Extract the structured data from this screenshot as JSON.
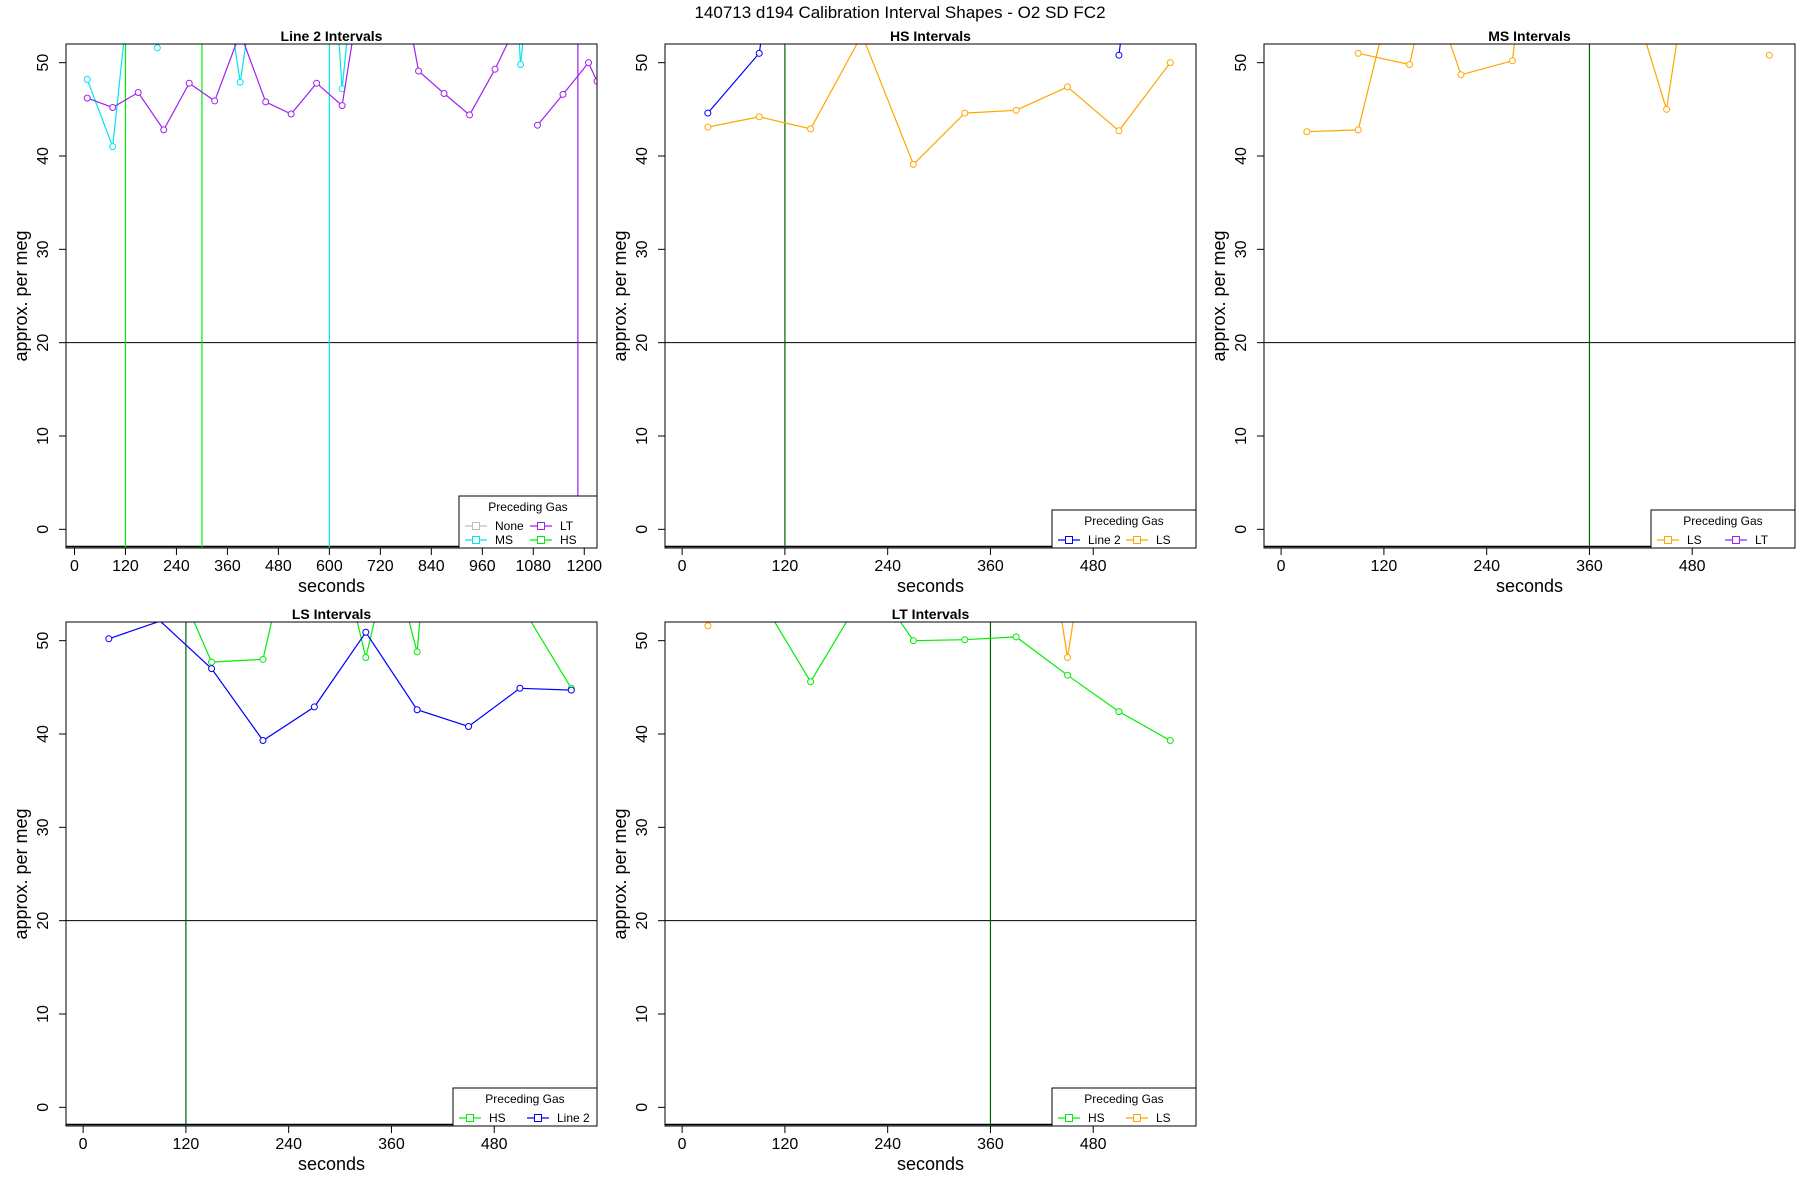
{
  "figure": {
    "title": "140713   d194   Calibration Interval Shapes - O2 SD FC2",
    "legend_title": "Preceding Gas"
  },
  "colors": {
    "None": "#bebebe",
    "MS": "#00e5ee",
    "LT": "#a020f0",
    "HS": "#00ee00",
    "LS": "#ffa500",
    "Line 2": "#0000ff",
    "reference_line": "#006400",
    "baseline": "#000000"
  },
  "chart_data": [
    {
      "type": "line",
      "title": "Line 2 Intervals",
      "xlabel": "seconds",
      "ylabel": "approx. per meg",
      "xlim": [
        -20,
        1230
      ],
      "ylim": [
        -2,
        52
      ],
      "xticks": [
        0,
        120,
        240,
        360,
        480,
        600,
        720,
        840,
        960,
        1080,
        1200
      ],
      "yticks": [
        0,
        10,
        20,
        30,
        40,
        50
      ],
      "hline": 20,
      "grid": false,
      "legend_position": "bottom-right",
      "legend_columns": 2,
      "legend": [
        "None",
        "LT",
        "MS",
        "HS"
      ],
      "vlines": [
        {
          "x": 120,
          "color": "HS"
        },
        {
          "x": 300,
          "color": "HS"
        },
        {
          "x": 600,
          "color": "MS"
        },
        {
          "x": 1185,
          "color": "LT"
        }
      ],
      "series": [
        {
          "name": "MS",
          "x": [
            30,
            90,
            120
          ],
          "y": [
            48.2,
            41.0,
            54
          ]
        },
        {
          "name": "MS",
          "x": [
            195,
            210
          ],
          "y": [
            51.6,
            54
          ]
        },
        {
          "name": "MS",
          "x": [
            370,
            390,
            410
          ],
          "y": [
            54,
            47.9,
            54
          ]
        },
        {
          "name": "MS",
          "x": [
            620,
            630,
            645
          ],
          "y": [
            54,
            47.2,
            54
          ]
        },
        {
          "name": "MS",
          "x": [
            1045,
            1050,
            1060
          ],
          "y": [
            54,
            49.8,
            54
          ]
        },
        {
          "name": "LT",
          "x": [
            30,
            90,
            150,
            210,
            270,
            330,
            390,
            450,
            510,
            570,
            630,
            660
          ],
          "y": [
            46.2,
            45.2,
            46.8,
            42.8,
            47.8,
            45.9,
            53.2,
            45.8,
            44.5,
            47.8,
            45.4,
            54
          ]
        },
        {
          "name": "LT",
          "x": [
            790,
            810,
            870,
            930,
            990,
            1040
          ],
          "y": [
            54,
            49.1,
            46.7,
            44.4,
            49.3,
            54
          ]
        },
        {
          "name": "LT",
          "x": [
            1090,
            1150,
            1210,
            1230
          ],
          "y": [
            43.3,
            46.6,
            50.0,
            48.0
          ]
        }
      ]
    },
    {
      "type": "line",
      "title": "HS Intervals",
      "xlabel": "seconds",
      "ylabel": "approx. per meg",
      "xlim": [
        -20,
        600
      ],
      "ylim": [
        -2,
        52
      ],
      "xticks": [
        0,
        120,
        240,
        360,
        480
      ],
      "yticks": [
        0,
        10,
        20,
        30,
        40,
        50
      ],
      "hline": 20,
      "grid": false,
      "legend_position": "bottom-right",
      "legend_columns": 2,
      "legend": [
        "Line 2",
        "LS"
      ],
      "vlines": [
        {
          "x": 120,
          "color": "reference_line"
        }
      ],
      "series": [
        {
          "name": "Line 2",
          "x": [
            30,
            90,
            95
          ],
          "y": [
            44.6,
            51.0,
            54
          ]
        },
        {
          "name": "Line 2",
          "x": [
            510,
            513
          ],
          "y": [
            50.8,
            53
          ]
        },
        {
          "name": "LS",
          "x": [
            30,
            90,
            150,
            210,
            270,
            330,
            390,
            450,
            510,
            570
          ],
          "y": [
            43.1,
            44.2,
            42.9,
            53.0,
            39.1,
            44.6,
            44.9,
            47.4,
            42.7,
            50.0
          ]
        }
      ]
    },
    {
      "type": "line",
      "title": "MS Intervals",
      "xlabel": "seconds",
      "ylabel": "approx. per meg",
      "xlim": [
        -20,
        600
      ],
      "ylim": [
        -2,
        52
      ],
      "xticks": [
        0,
        120,
        240,
        360,
        480
      ],
      "yticks": [
        0,
        10,
        20,
        30,
        40,
        50
      ],
      "hline": 20,
      "grid": false,
      "legend_position": "bottom-right",
      "legend_columns": 2,
      "legend": [
        "LS",
        "LT"
      ],
      "vlines": [
        {
          "x": 360,
          "color": "reference_line"
        }
      ],
      "series": [
        {
          "name": "LS",
          "x": [
            30,
            90,
            120
          ],
          "y": [
            42.6,
            42.8,
            54
          ]
        },
        {
          "name": "LS",
          "x": [
            90,
            150,
            160
          ],
          "y": [
            51.0,
            49.8,
            54
          ]
        },
        {
          "name": "LS",
          "x": [
            190,
            210,
            270,
            275
          ],
          "y": [
            54,
            48.7,
            50.2,
            54
          ]
        },
        {
          "name": "LS",
          "x": [
            420,
            450,
            465
          ],
          "y": [
            54,
            45.0,
            54
          ]
        },
        {
          "name": "LS",
          "x": [
            570
          ],
          "y": [
            50.8
          ]
        }
      ]
    },
    {
      "type": "line",
      "title": "LS Intervals",
      "xlabel": "seconds",
      "ylabel": "approx. per meg",
      "xlim": [
        -20,
        600
      ],
      "ylim": [
        -2,
        52
      ],
      "xticks": [
        0,
        120,
        240,
        360,
        480
      ],
      "yticks": [
        0,
        10,
        20,
        30,
        40,
        50
      ],
      "hline": 20,
      "grid": false,
      "legend_position": "bottom-right",
      "legend_columns": 2,
      "legend": [
        "HS",
        "Line 2"
      ],
      "vlines": [
        {
          "x": 120,
          "color": "reference_line"
        }
      ],
      "series": [
        {
          "name": "HS",
          "x": [
            120,
            150,
            210,
            225
          ],
          "y": [
            54,
            47.7,
            48.0,
            54
          ]
        },
        {
          "name": "HS",
          "x": [
            315,
            330,
            345
          ],
          "y": [
            54,
            48.2,
            54
          ]
        },
        {
          "name": "HS",
          "x": [
            375,
            390,
            395
          ],
          "y": [
            54,
            48.8,
            54
          ]
        },
        {
          "name": "HS",
          "x": [
            510,
            570
          ],
          "y": [
            54,
            44.9
          ]
        },
        {
          "name": "Line 2",
          "x": [
            30,
            90,
            150,
            210,
            270,
            330,
            390,
            450,
            510,
            570
          ],
          "y": [
            50.2,
            52.1,
            47.0,
            39.3,
            42.9,
            50.9,
            42.6,
            40.8,
            44.9,
            44.7
          ]
        }
      ]
    },
    {
      "type": "line",
      "title": "LT Intervals",
      "xlabel": "seconds",
      "ylabel": "approx. per meg",
      "xlim": [
        -20,
        600
      ],
      "ylim": [
        -2,
        52
      ],
      "xticks": [
        0,
        120,
        240,
        360,
        480
      ],
      "yticks": [
        0,
        10,
        20,
        30,
        40,
        50
      ],
      "hline": 20,
      "grid": false,
      "legend_position": "bottom-right",
      "legend_columns": 2,
      "legend": [
        "HS",
        "LS"
      ],
      "vlines": [
        {
          "x": 360,
          "color": "reference_line"
        }
      ],
      "series": [
        {
          "name": "HS",
          "x": [
            95,
            150,
            205
          ],
          "y": [
            54,
            45.6,
            54
          ]
        },
        {
          "name": "HS",
          "x": [
            240,
            270,
            330,
            390,
            450,
            510,
            570
          ],
          "y": [
            54,
            50.0,
            50.1,
            50.4,
            46.3,
            42.4,
            39.3
          ]
        },
        {
          "name": "LS",
          "x": [
            30
          ],
          "y": [
            51.6
          ]
        },
        {
          "name": "LS",
          "x": [
            440,
            450,
            460
          ],
          "y": [
            54,
            48.2,
            54
          ]
        }
      ]
    }
  ]
}
